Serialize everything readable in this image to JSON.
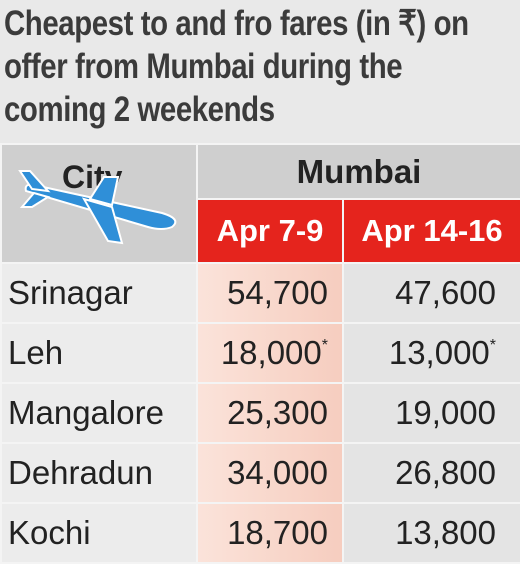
{
  "header": {
    "title": "Cheapest to and fro fares (in ₹) on offer from Mumbai during the coming 2 weekends"
  },
  "table": {
    "columns": {
      "city": "City",
      "group": "Mumbai",
      "dates": [
        "Apr 7-9",
        "Apr 14-16"
      ]
    },
    "rows": [
      {
        "city": "Srinagar",
        "fares": [
          {
            "text": "54,700"
          },
          {
            "text": "47,600"
          }
        ]
      },
      {
        "city": "Leh",
        "fares": [
          {
            "text": "18,000",
            "mark": "*"
          },
          {
            "text": "13,000",
            "mark": "*"
          }
        ]
      },
      {
        "city": "Mangalore",
        "fares": [
          {
            "text": "25,300"
          },
          {
            "text": "19,000"
          }
        ]
      },
      {
        "city": "Dehradun",
        "fares": [
          {
            "text": "34,000"
          },
          {
            "text": "26,800"
          }
        ]
      },
      {
        "city": "Kochi",
        "fares": [
          {
            "text": "18,700"
          },
          {
            "text": "13,800"
          }
        ]
      }
    ]
  }
}
